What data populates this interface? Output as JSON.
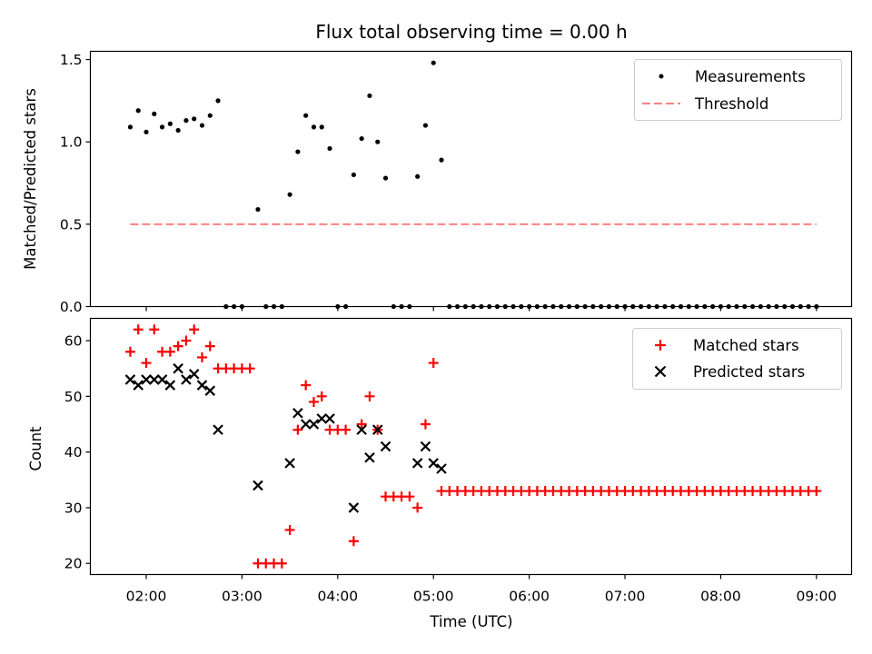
{
  "chart_data": [
    {
      "type": "scatter",
      "title": "Flux total observing time = 0.00 h",
      "ylabel": "Matched/Predicted stars",
      "xlim": [
        "01:25",
        "09:22"
      ],
      "ylim": [
        0,
        1.55
      ],
      "yticks": [
        "0.0",
        "0.5",
        "1.0",
        "1.5"
      ],
      "legend_position": "top-right",
      "series": [
        {
          "name": "Measurements",
          "color": "#000000",
          "marker": "dot",
          "points": [
            [
              "01:50",
              1.09
            ],
            [
              "01:55",
              1.19
            ],
            [
              "02:00",
              1.06
            ],
            [
              "02:05",
              1.17
            ],
            [
              "02:10",
              1.09
            ],
            [
              "02:15",
              1.11
            ],
            [
              "02:20",
              1.07
            ],
            [
              "02:25",
              1.13
            ],
            [
              "02:30",
              1.14
            ],
            [
              "02:35",
              1.1
            ],
            [
              "02:40",
              1.16
            ],
            [
              "02:45",
              1.25
            ],
            [
              "02:50",
              0.0
            ],
            [
              "02:55",
              0.0
            ],
            [
              "03:00",
              0.0
            ],
            [
              "03:10",
              0.59
            ],
            [
              "03:15",
              0.0
            ],
            [
              "03:20",
              0.0
            ],
            [
              "03:25",
              0.0
            ],
            [
              "03:30",
              0.68
            ],
            [
              "03:35",
              0.94
            ],
            [
              "03:40",
              1.16
            ],
            [
              "03:45",
              1.09
            ],
            [
              "03:50",
              1.09
            ],
            [
              "03:55",
              0.96
            ],
            [
              "04:00",
              0.0
            ],
            [
              "04:05",
              0.0
            ],
            [
              "04:10",
              0.8
            ],
            [
              "04:15",
              1.02
            ],
            [
              "04:20",
              1.28
            ],
            [
              "04:25",
              1.0
            ],
            [
              "04:30",
              0.78
            ],
            [
              "04:35",
              0.0
            ],
            [
              "04:40",
              0.0
            ],
            [
              "04:45",
              0.0
            ],
            [
              "04:50",
              0.79
            ],
            [
              "04:55",
              1.1
            ],
            [
              "05:00",
              1.48
            ],
            [
              "05:05",
              0.89
            ],
            [
              "05:10",
              0.0
            ],
            [
              "05:15",
              0.0
            ],
            [
              "05:20",
              0.0
            ],
            [
              "05:25",
              0.0
            ],
            [
              "05:30",
              0.0
            ],
            [
              "05:35",
              0.0
            ],
            [
              "05:40",
              0.0
            ],
            [
              "05:45",
              0.0
            ],
            [
              "05:50",
              0.0
            ],
            [
              "05:55",
              0.0
            ],
            [
              "06:00",
              0.0
            ],
            [
              "06:05",
              0.0
            ],
            [
              "06:10",
              0.0
            ],
            [
              "06:15",
              0.0
            ],
            [
              "06:20",
              0.0
            ],
            [
              "06:25",
              0.0
            ],
            [
              "06:30",
              0.0
            ],
            [
              "06:35",
              0.0
            ],
            [
              "06:40",
              0.0
            ],
            [
              "06:45",
              0.0
            ],
            [
              "06:50",
              0.0
            ],
            [
              "06:55",
              0.0
            ],
            [
              "07:00",
              0.0
            ],
            [
              "07:05",
              0.0
            ],
            [
              "07:10",
              0.0
            ],
            [
              "07:15",
              0.0
            ],
            [
              "07:20",
              0.0
            ],
            [
              "07:25",
              0.0
            ],
            [
              "07:30",
              0.0
            ],
            [
              "07:35",
              0.0
            ],
            [
              "07:40",
              0.0
            ],
            [
              "07:45",
              0.0
            ],
            [
              "07:50",
              0.0
            ],
            [
              "07:55",
              0.0
            ],
            [
              "08:00",
              0.0
            ],
            [
              "08:05",
              0.0
            ],
            [
              "08:10",
              0.0
            ],
            [
              "08:15",
              0.0
            ],
            [
              "08:20",
              0.0
            ],
            [
              "08:25",
              0.0
            ],
            [
              "08:30",
              0.0
            ],
            [
              "08:35",
              0.0
            ],
            [
              "08:40",
              0.0
            ],
            [
              "08:45",
              0.0
            ],
            [
              "08:50",
              0.0
            ],
            [
              "08:55",
              0.0
            ],
            [
              "09:00",
              0.0
            ]
          ]
        },
        {
          "name": "Threshold",
          "color": "#ff7f7f",
          "marker": "dashed-line",
          "points": [
            [
              "01:50",
              0.5
            ],
            [
              "09:00",
              0.5
            ]
          ]
        }
      ]
    },
    {
      "type": "scatter",
      "ylabel": "Count",
      "xlabel": "Time (UTC)",
      "xlim": [
        "01:25",
        "09:22"
      ],
      "ylim": [
        18,
        64
      ],
      "xticks": [
        "02:00",
        "03:00",
        "04:00",
        "05:00",
        "06:00",
        "07:00",
        "08:00",
        "09:00"
      ],
      "yticks": [
        "20",
        "30",
        "40",
        "50",
        "60"
      ],
      "legend_position": "top-right",
      "series": [
        {
          "name": "Matched stars",
          "color": "#ff0000",
          "marker": "plus",
          "points": [
            [
              "01:50",
              58
            ],
            [
              "01:55",
              62
            ],
            [
              "02:00",
              56
            ],
            [
              "02:05",
              62
            ],
            [
              "02:10",
              58
            ],
            [
              "02:15",
              58
            ],
            [
              "02:20",
              59
            ],
            [
              "02:25",
              60
            ],
            [
              "02:30",
              62
            ],
            [
              "02:35",
              57
            ],
            [
              "02:40",
              59
            ],
            [
              "02:45",
              55
            ],
            [
              "02:50",
              55
            ],
            [
              "02:55",
              55
            ],
            [
              "03:00",
              55
            ],
            [
              "03:05",
              55
            ],
            [
              "03:10",
              20
            ],
            [
              "03:15",
              20
            ],
            [
              "03:20",
              20
            ],
            [
              "03:25",
              20
            ],
            [
              "03:30",
              26
            ],
            [
              "03:35",
              44
            ],
            [
              "03:40",
              52
            ],
            [
              "03:45",
              49
            ],
            [
              "03:50",
              50
            ],
            [
              "03:55",
              44
            ],
            [
              "04:00",
              44
            ],
            [
              "04:05",
              44
            ],
            [
              "04:10",
              24
            ],
            [
              "04:15",
              45
            ],
            [
              "04:20",
              50
            ],
            [
              "04:25",
              44
            ],
            [
              "04:30",
              32
            ],
            [
              "04:35",
              32
            ],
            [
              "04:40",
              32
            ],
            [
              "04:45",
              32
            ],
            [
              "04:50",
              30
            ],
            [
              "04:55",
              45
            ],
            [
              "05:00",
              56
            ],
            [
              "05:05",
              33
            ],
            [
              "05:10",
              33
            ],
            [
              "05:15",
              33
            ],
            [
              "05:20",
              33
            ],
            [
              "05:25",
              33
            ],
            [
              "05:30",
              33
            ],
            [
              "05:35",
              33
            ],
            [
              "05:40",
              33
            ],
            [
              "05:45",
              33
            ],
            [
              "05:50",
              33
            ],
            [
              "05:55",
              33
            ],
            [
              "06:00",
              33
            ],
            [
              "06:05",
              33
            ],
            [
              "06:10",
              33
            ],
            [
              "06:15",
              33
            ],
            [
              "06:20",
              33
            ],
            [
              "06:25",
              33
            ],
            [
              "06:30",
              33
            ],
            [
              "06:35",
              33
            ],
            [
              "06:40",
              33
            ],
            [
              "06:45",
              33
            ],
            [
              "06:50",
              33
            ],
            [
              "06:55",
              33
            ],
            [
              "07:00",
              33
            ],
            [
              "07:05",
              33
            ],
            [
              "07:10",
              33
            ],
            [
              "07:15",
              33
            ],
            [
              "07:20",
              33
            ],
            [
              "07:25",
              33
            ],
            [
              "07:30",
              33
            ],
            [
              "07:35",
              33
            ],
            [
              "07:40",
              33
            ],
            [
              "07:45",
              33
            ],
            [
              "07:50",
              33
            ],
            [
              "07:55",
              33
            ],
            [
              "08:00",
              33
            ],
            [
              "08:05",
              33
            ],
            [
              "08:10",
              33
            ],
            [
              "08:15",
              33
            ],
            [
              "08:20",
              33
            ],
            [
              "08:25",
              33
            ],
            [
              "08:30",
              33
            ],
            [
              "08:35",
              33
            ],
            [
              "08:40",
              33
            ],
            [
              "08:45",
              33
            ],
            [
              "08:50",
              33
            ],
            [
              "08:55",
              33
            ],
            [
              "09:00",
              33
            ]
          ]
        },
        {
          "name": "Predicted stars",
          "color": "#000000",
          "marker": "x",
          "points": [
            [
              "01:50",
              53
            ],
            [
              "01:55",
              52
            ],
            [
              "02:00",
              53
            ],
            [
              "02:05",
              53
            ],
            [
              "02:10",
              53
            ],
            [
              "02:15",
              52
            ],
            [
              "02:20",
              55
            ],
            [
              "02:25",
              53
            ],
            [
              "02:30",
              54
            ],
            [
              "02:35",
              52
            ],
            [
              "02:40",
              51
            ],
            [
              "02:45",
              44
            ],
            [
              "03:10",
              34
            ],
            [
              "03:30",
              38
            ],
            [
              "03:35",
              47
            ],
            [
              "03:40",
              45
            ],
            [
              "03:45",
              45
            ],
            [
              "03:50",
              46
            ],
            [
              "03:55",
              46
            ],
            [
              "04:10",
              30
            ],
            [
              "04:15",
              44
            ],
            [
              "04:20",
              39
            ],
            [
              "04:25",
              44
            ],
            [
              "04:30",
              41
            ],
            [
              "04:50",
              38
            ],
            [
              "04:55",
              41
            ],
            [
              "05:00",
              38
            ],
            [
              "05:05",
              37
            ]
          ]
        }
      ]
    }
  ]
}
